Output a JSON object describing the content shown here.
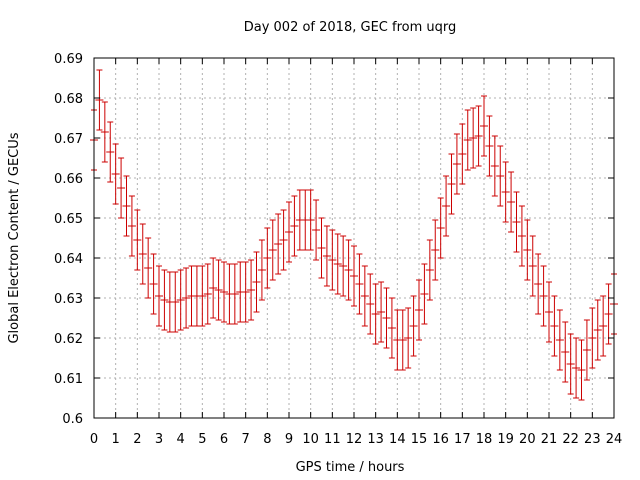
{
  "chart_data": {
    "type": "scatter",
    "title": "Day 002 of 2018, GEC from uqrg",
    "xlabel": "GPS time / hours",
    "ylabel": "Global Electron Content / GECUs",
    "xlim": [
      0,
      24
    ],
    "ylim": [
      0.6,
      0.69
    ],
    "x_ticks": [
      0,
      1,
      2,
      3,
      4,
      5,
      6,
      7,
      8,
      9,
      10,
      11,
      12,
      13,
      14,
      15,
      16,
      17,
      18,
      19,
      20,
      21,
      22,
      23,
      24
    ],
    "y_ticks": [
      0.6,
      0.61,
      0.62,
      0.63,
      0.64,
      0.65,
      0.66,
      0.67,
      0.68,
      0.69
    ],
    "x_tick_labels": [
      "0",
      "1",
      "2",
      "3",
      "4",
      "5",
      "6",
      "7",
      "8",
      "9",
      "10",
      "11",
      "12",
      "13",
      "14",
      "15",
      "16",
      "17",
      "18",
      "19",
      "20",
      "21",
      "22",
      "23",
      "24"
    ],
    "y_tick_labels": [
      "0.6",
      "0.61",
      "0.62",
      "0.63",
      "0.64",
      "0.65",
      "0.66",
      "0.67",
      "0.68",
      "0.69"
    ],
    "grid": true,
    "error": 0.0075,
    "series_color": "#cc0000",
    "points": [
      [
        0.0,
        0.6695
      ],
      [
        0.25,
        0.6795
      ],
      [
        0.5,
        0.6715
      ],
      [
        0.75,
        0.6665
      ],
      [
        1.0,
        0.661
      ],
      [
        1.25,
        0.6575
      ],
      [
        1.5,
        0.653
      ],
      [
        1.75,
        0.648
      ],
      [
        2.0,
        0.6445
      ],
      [
        2.25,
        0.641
      ],
      [
        2.5,
        0.6375
      ],
      [
        2.75,
        0.6335
      ],
      [
        3.0,
        0.6305
      ],
      [
        3.25,
        0.6295
      ],
      [
        3.5,
        0.629
      ],
      [
        3.75,
        0.629
      ],
      [
        4.0,
        0.6295
      ],
      [
        4.25,
        0.63
      ],
      [
        4.5,
        0.6305
      ],
      [
        4.75,
        0.6305
      ],
      [
        5.0,
        0.6305
      ],
      [
        5.25,
        0.631
      ],
      [
        5.5,
        0.6325
      ],
      [
        5.75,
        0.632
      ],
      [
        6.0,
        0.6315
      ],
      [
        6.25,
        0.631
      ],
      [
        6.5,
        0.631
      ],
      [
        6.75,
        0.6315
      ],
      [
        7.0,
        0.6315
      ],
      [
        7.25,
        0.632
      ],
      [
        7.5,
        0.634
      ],
      [
        7.75,
        0.637
      ],
      [
        8.0,
        0.64
      ],
      [
        8.25,
        0.642
      ],
      [
        8.5,
        0.6435
      ],
      [
        8.75,
        0.6445
      ],
      [
        9.0,
        0.6465
      ],
      [
        9.25,
        0.648
      ],
      [
        9.5,
        0.6495
      ],
      [
        9.75,
        0.6495
      ],
      [
        10.0,
        0.6495
      ],
      [
        10.25,
        0.647
      ],
      [
        10.5,
        0.6425
      ],
      [
        10.75,
        0.6405
      ],
      [
        11.0,
        0.6395
      ],
      [
        11.25,
        0.6385
      ],
      [
        11.5,
        0.638
      ],
      [
        11.75,
        0.637
      ],
      [
        12.0,
        0.6355
      ],
      [
        12.25,
        0.6335
      ],
      [
        12.5,
        0.6305
      ],
      [
        12.75,
        0.6285
      ],
      [
        13.0,
        0.626
      ],
      [
        13.25,
        0.6265
      ],
      [
        13.5,
        0.625
      ],
      [
        13.75,
        0.6225
      ],
      [
        14.0,
        0.6195
      ],
      [
        14.25,
        0.6195
      ],
      [
        14.5,
        0.62
      ],
      [
        14.75,
        0.623
      ],
      [
        15.0,
        0.627
      ],
      [
        15.25,
        0.631
      ],
      [
        15.5,
        0.637
      ],
      [
        15.75,
        0.642
      ],
      [
        16.0,
        0.6475
      ],
      [
        16.25,
        0.653
      ],
      [
        16.5,
        0.6585
      ],
      [
        16.75,
        0.6635
      ],
      [
        17.0,
        0.666
      ],
      [
        17.25,
        0.6695
      ],
      [
        17.5,
        0.67
      ],
      [
        17.75,
        0.6705
      ],
      [
        18.0,
        0.673
      ],
      [
        18.25,
        0.668
      ],
      [
        18.5,
        0.663
      ],
      [
        18.75,
        0.6605
      ],
      [
        19.0,
        0.6565
      ],
      [
        19.25,
        0.654
      ],
      [
        19.5,
        0.649
      ],
      [
        19.75,
        0.6455
      ],
      [
        20.0,
        0.642
      ],
      [
        20.25,
        0.638
      ],
      [
        20.5,
        0.6335
      ],
      [
        20.75,
        0.6305
      ],
      [
        21.0,
        0.6265
      ],
      [
        21.25,
        0.623
      ],
      [
        21.5,
        0.6195
      ],
      [
        21.75,
        0.6165
      ],
      [
        22.0,
        0.6135
      ],
      [
        22.25,
        0.6125
      ],
      [
        22.5,
        0.612
      ],
      [
        22.75,
        0.617
      ],
      [
        23.0,
        0.62
      ],
      [
        23.25,
        0.622
      ],
      [
        23.5,
        0.623
      ],
      [
        23.75,
        0.626
      ],
      [
        24.0,
        0.6285
      ]
    ]
  }
}
